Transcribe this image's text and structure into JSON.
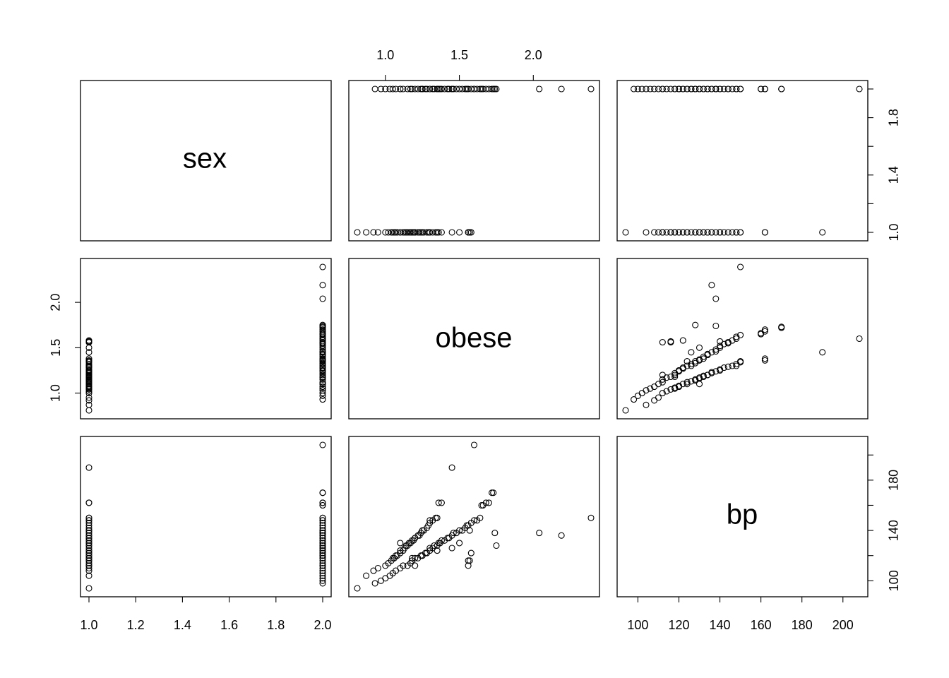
{
  "chart_data": {
    "type": "scatter",
    "plot_kind": "scatterplot matrix (pairs plot)",
    "variables": [
      {
        "name": "sex",
        "range": [
          1.0,
          2.0
        ]
      },
      {
        "name": "obese",
        "range": [
          0.81,
          2.39
        ]
      },
      {
        "name": "bp",
        "range": [
          94,
          208
        ]
      }
    ],
    "axes": {
      "sex": {
        "ticks": [
          1.0,
          1.2,
          1.4,
          1.6,
          1.8,
          2.0
        ],
        "tick_labels": [
          "1.0",
          "1.2",
          "1.4",
          "1.6",
          "1.8",
          "2.0"
        ],
        "shown": [
          "bottom",
          "right"
        ],
        "right_ticks": [
          1.0,
          1.2,
          1.4,
          1.6,
          1.8,
          2.0
        ],
        "right_tick_labels": [
          "1.0",
          "",
          "1.4",
          "",
          "1.8",
          ""
        ]
      },
      "obese": {
        "ticks": [
          1.0,
          1.5,
          2.0
        ],
        "tick_labels": [
          "1.0",
          "1.5",
          "2.0"
        ],
        "shown": [
          "top",
          "left"
        ]
      },
      "bp": {
        "ticks": [
          100,
          120,
          140,
          160,
          180,
          200
        ],
        "tick_labels": [
          "100",
          "120",
          "140",
          "160",
          "180",
          "200"
        ],
        "shown": [
          "bottom",
          "right"
        ],
        "right_ticks": [
          100,
          120,
          140,
          160,
          180,
          200
        ],
        "right_tick_labels": [
          "100",
          "",
          "140",
          "",
          "180",
          ""
        ]
      }
    },
    "data": {
      "sex": [
        1,
        1,
        1,
        1,
        1,
        1,
        1,
        1,
        1,
        1,
        1,
        1,
        1,
        1,
        1,
        1,
        1,
        1,
        1,
        1,
        1,
        1,
        1,
        1,
        1,
        1,
        1,
        1,
        1,
        1,
        1,
        1,
        1,
        1,
        1,
        1,
        1,
        1,
        1,
        1,
        1,
        1,
        1,
        1,
        1,
        1,
        2,
        2,
        2,
        2,
        2,
        2,
        2,
        2,
        2,
        2,
        2,
        2,
        2,
        2,
        2,
        2,
        2,
        2,
        2,
        2,
        2,
        2,
        2,
        2,
        2,
        2,
        2,
        2,
        2,
        2,
        2,
        2,
        2,
        2,
        2,
        2,
        2,
        2,
        2,
        2,
        2,
        2,
        2,
        2,
        2,
        2,
        2,
        2,
        2,
        2,
        2,
        2,
        2,
        2,
        2,
        2
      ],
      "obese": [
        0.81,
        0.87,
        0.92,
        0.95,
        1.0,
        1.02,
        1.04,
        1.05,
        1.06,
        1.07,
        1.08,
        1.1,
        1.1,
        1.12,
        1.13,
        1.14,
        1.15,
        1.16,
        1.17,
        1.18,
        1.19,
        1.2,
        1.2,
        1.22,
        1.23,
        1.24,
        1.25,
        1.26,
        1.28,
        1.29,
        1.3,
        1.3,
        1.32,
        1.34,
        1.35,
        1.36,
        1.38,
        1.45,
        1.5,
        1.56,
        1.57,
        1.58,
        1.57,
        1.56,
        1.2,
        1.18,
        0.93,
        0.97,
        1.0,
        1.03,
        1.05,
        1.07,
        1.1,
        1.12,
        1.15,
        1.17,
        1.18,
        1.2,
        1.22,
        1.24,
        1.25,
        1.27,
        1.28,
        1.3,
        1.3,
        1.32,
        1.33,
        1.35,
        1.36,
        1.37,
        1.38,
        1.4,
        1.42,
        1.43,
        1.45,
        1.46,
        1.48,
        1.5,
        1.52,
        1.54,
        1.55,
        1.56,
        1.58,
        1.6,
        1.62,
        1.64,
        1.65,
        1.66,
        1.68,
        1.7,
        1.72,
        1.73,
        1.74,
        1.75,
        2.04,
        2.19,
        2.39,
        1.25,
        1.1,
        1.35,
        1.45,
        1.6
      ],
      "bp": [
        94,
        104,
        108,
        110,
        112,
        114,
        116,
        118,
        118,
        120,
        120,
        122,
        124,
        124,
        126,
        128,
        128,
        130,
        130,
        132,
        132,
        134,
        134,
        136,
        136,
        138,
        140,
        140,
        142,
        144,
        146,
        148,
        148,
        150,
        150,
        162,
        162,
        190,
        130,
        112,
        116,
        122,
        140,
        116,
        112,
        118,
        98,
        100,
        102,
        104,
        106,
        108,
        110,
        112,
        112,
        114,
        116,
        118,
        118,
        120,
        120,
        122,
        122,
        124,
        126,
        126,
        128,
        128,
        130,
        130,
        132,
        132,
        134,
        134,
        136,
        138,
        138,
        140,
        140,
        142,
        144,
        144,
        146,
        148,
        148,
        150,
        160,
        160,
        162,
        162,
        170,
        170,
        138,
        128,
        138,
        136,
        150,
        120,
        130,
        124,
        126,
        208
      ]
    },
    "diagonal_labels": [
      "sex",
      "obese",
      "bp"
    ]
  }
}
